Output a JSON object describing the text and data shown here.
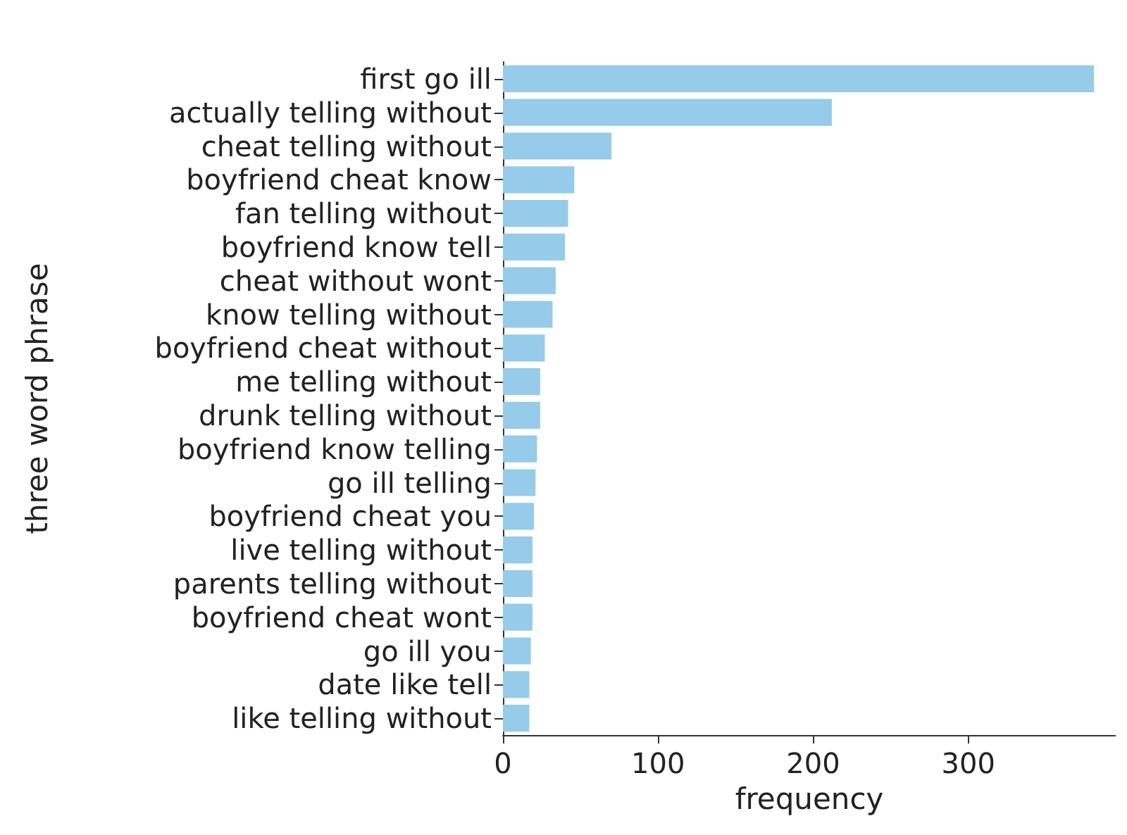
{
  "chart_data": {
    "type": "bar",
    "orientation": "horizontal",
    "xlabel": "frequency",
    "ylabel": "three word phrase",
    "categories": [
      "first go ill",
      "actually telling without",
      "cheat telling without",
      "boyfriend cheat know",
      "fan telling without",
      "boyfriend know tell",
      "cheat without wont",
      "know telling without",
      "boyfriend cheat without",
      "me telling without",
      "drunk telling without",
      "boyfriend know telling",
      "go ill telling",
      "boyfriend cheat you",
      "live telling without",
      "parents telling without",
      "boyfriend cheat wont",
      "go ill you",
      "date like tell",
      "like telling without"
    ],
    "values": [
      381,
      212,
      70,
      46,
      42,
      40,
      34,
      32,
      27,
      24,
      24,
      22,
      21,
      20,
      19,
      19,
      19,
      18,
      17,
      17
    ],
    "color": "#96cbe9",
    "xlim": [
      0,
      395
    ],
    "xticks": [
      0,
      100,
      200,
      300
    ],
    "grid": false
  }
}
